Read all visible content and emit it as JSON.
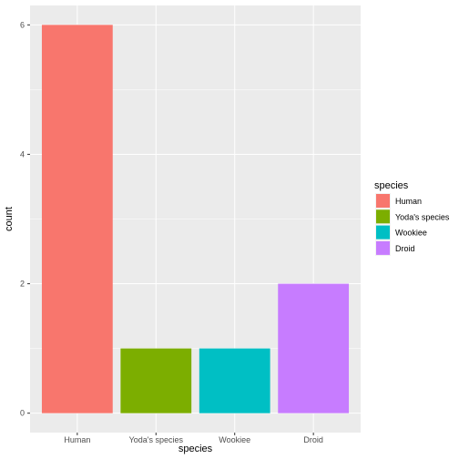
{
  "chart_data": {
    "type": "bar",
    "categories": [
      "Human",
      "Yoda's species",
      "Wookiee",
      "Droid"
    ],
    "values": [
      6,
      1,
      1,
      2
    ],
    "colors": [
      "#F8766D",
      "#7CAE00",
      "#00BFC4",
      "#C77CFF"
    ],
    "xlabel": "species",
    "ylabel": "count",
    "ylim": [
      -0.3,
      6.3
    ],
    "yticks": [
      0,
      2,
      4,
      6
    ],
    "grid": true,
    "panel_background": "#EBEBEB",
    "legend": {
      "title": "species",
      "placement": "right",
      "entries": [
        "Human",
        "Yoda's species",
        "Wookiee",
        "Droid"
      ]
    }
  }
}
